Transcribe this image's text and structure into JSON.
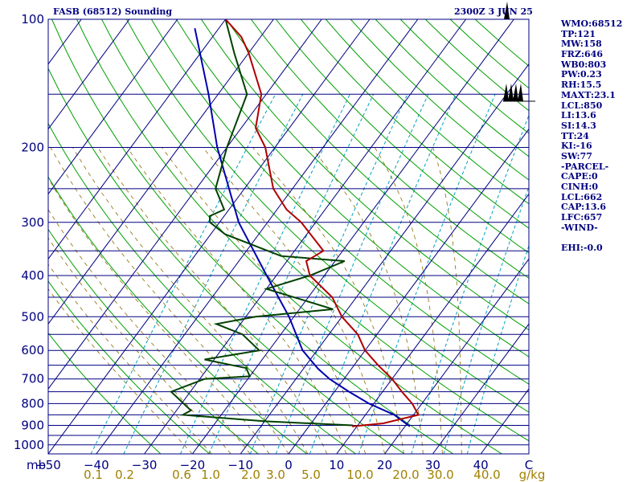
{
  "header": {
    "title": "FASB (68512) Sounding",
    "time": "2300Z  3 JUN 25"
  },
  "indices": [
    "WMO:68512",
    "TP:121",
    "MW:158",
    "FRZ:646",
    "WB0:803",
    "PW:0.23",
    "RH:15.5",
    "MAXT:23.1",
    "LCL:850",
    "LI:13.6",
    "SI:14.3",
    "TT:24",
    "KI:-16",
    "SW:77",
    "-PARCEL-",
    "CAPE:0",
    "CINH:0",
    "LCL:662",
    "CAP:13.6",
    "LFC:657",
    "-WIND-",
    "",
    "EHI:-0.0"
  ],
  "colors": {
    "isobar": "#000080",
    "isotherm": "#000080",
    "dry_adiabat": "#00a000",
    "moist_adiabat": "#8a6a00",
    "mixing_ratio": "#00a0c0",
    "temperature": "#b00000",
    "dewpoint": "#004000",
    "parcel": "#0000b0",
    "mixing_label": "#a08000"
  },
  "chart_data": {
    "type": "skew-t",
    "title": "FASB (68512) Sounding",
    "p_unit": "mb",
    "pressure_levels": [
      100,
      200,
      300,
      400,
      500,
      600,
      700,
      800,
      900,
      1000
    ],
    "pressure_range": [
      1050,
      100
    ],
    "temperature_ticks": [
      -50,
      -40,
      -30,
      -20,
      -10,
      0,
      10,
      20,
      30,
      40
    ],
    "temperature_last_label": "C",
    "mixing_ratio_labels": [
      "0.1",
      "0.2",
      "0.6",
      "1.0",
      "2.0",
      "3.0",
      "5.0",
      "10.0",
      "20.0",
      "30.0",
      "40.0"
    ],
    "mixing_ratio_unit": "g/kg",
    "temperature": {
      "p": [
        905,
        890,
        870,
        850,
        800,
        750,
        700,
        650,
        600,
        550,
        500,
        450,
        400,
        370,
        360,
        350,
        300,
        280,
        250,
        200,
        180,
        150,
        120,
        110,
        100
      ],
      "t": [
        9,
        15,
        18,
        21,
        18,
        14,
        10,
        5,
        0,
        -4,
        -10,
        -15,
        -23,
        -26,
        -25,
        -24,
        -33,
        -38,
        -44,
        -52,
        -57,
        -61,
        -70,
        -74,
        -80
      ]
    },
    "dewpoint": {
      "p": [
        900,
        880,
        850,
        830,
        750,
        700,
        690,
        660,
        630,
        600,
        550,
        520,
        500,
        480,
        430,
        400,
        370,
        360,
        320,
        300,
        290,
        280,
        250,
        200,
        150,
        120,
        100
      ],
      "t": [
        9,
        -10,
        -28,
        -27,
        -34,
        -29,
        -20,
        -22,
        -32,
        -22,
        -28,
        -35,
        -28,
        -13,
        -30,
        -23,
        -18,
        -32,
        -47,
        -52,
        -53,
        -51,
        -56,
        -60,
        -64,
        -73,
        -80
      ]
    },
    "parcel": {
      "p": [
        905,
        850,
        800,
        750,
        700,
        662,
        600,
        500,
        400,
        300,
        200,
        150,
        105
      ],
      "t": [
        21,
        16,
        9,
        3,
        -3,
        -7,
        -13,
        -21,
        -32,
        -46,
        -62,
        -72,
        -85
      ]
    }
  }
}
